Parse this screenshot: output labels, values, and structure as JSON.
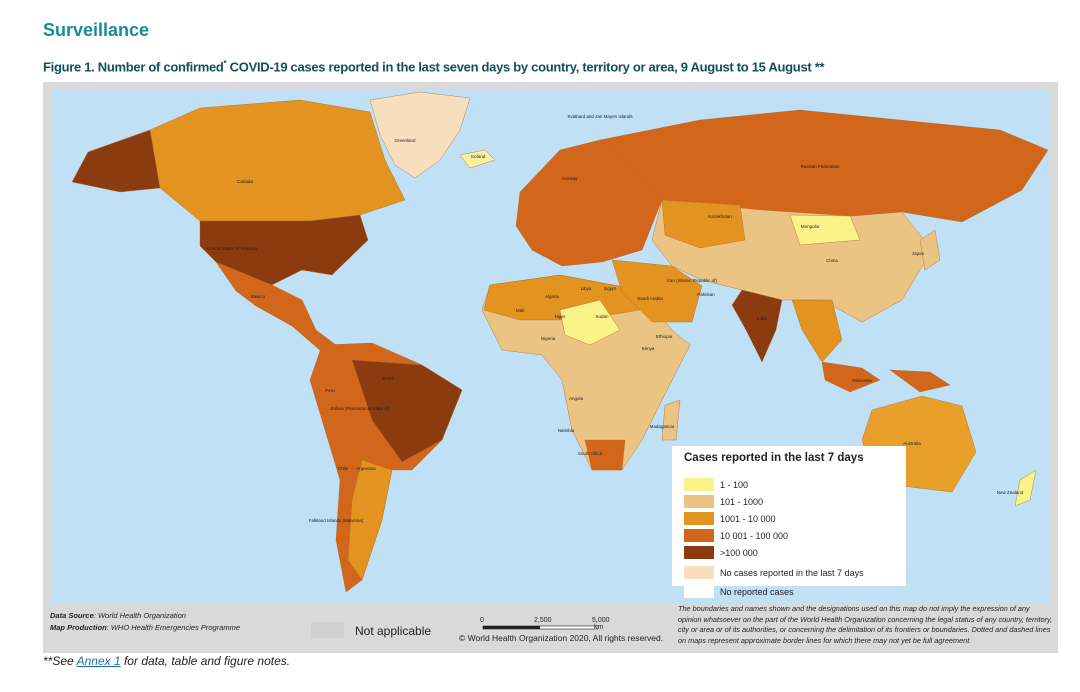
{
  "header": {
    "title": "Surveillance",
    "caption_prefix": "Figure 1. Number of confirmed",
    "caption_mark": "*",
    "caption_suffix": " COVID-19 cases reported in the last seven days by country, territory or area, 9 August to 15 August **"
  },
  "map": {
    "ocean_color": "#bfe0f5",
    "labels": [
      "Greenland",
      "Canada",
      "United States of America",
      "Brazil",
      "Russian Federation",
      "China",
      "India",
      "Mongolia",
      "Kazakhstan",
      "Mexico",
      "Argentina",
      "Chile",
      "South Africa",
      "Madagascar",
      "Indonesia",
      "Saudi Arabia",
      "Iceland",
      "Norway",
      "Australia",
      "New Zealand",
      "Japan",
      "Peru",
      "Bolivia (Plurinational State of)",
      "Sudan",
      "Algeria",
      "Egypt",
      "Kenya",
      "Ethiopia",
      "Nigeria",
      "Libya",
      "Niger",
      "Mali",
      "Angola",
      "Namibia",
      "Iran (Islamic Republic of)",
      "Pakistan",
      "Falkland Islands (Malvinas)",
      "Svalbard and Jan Mayen Islands"
    ],
    "legend": {
      "title": "Cases reported in the last 7 days",
      "items": [
        {
          "label": "1 - 100",
          "color": "#fbf28a"
        },
        {
          "label": "101 - 1000",
          "color": "#ebc383"
        },
        {
          "label": "1001 - 10 000",
          "color": "#e3931f"
        },
        {
          "label": "10 001 - 100 000",
          "color": "#d2661a"
        },
        {
          "label": ">100 000",
          "color": "#8c3a10"
        },
        {
          "label": "No cases reported in the last 7 days",
          "color": "#f7dfbd"
        },
        {
          "label": "No reported cases",
          "color": "#ffffff"
        }
      ]
    }
  },
  "footer": {
    "data_source_label": "Data Source",
    "data_source": "World Health Organization",
    "map_production_label": "Map Production",
    "map_production": "WHO Health Emergencies Programme",
    "not_applicable": "Not applicable",
    "scale": [
      "0",
      "2,500",
      "5,000",
      "km"
    ],
    "copyright": "© World Health Organization  2020,  All rights reserved.",
    "disclaimer": "The boundaries and names shown and the designations used on this map do not imply the expression of any opinion whatsoever on the part of the World Health Organization concerning the legal status of any country, territory, city or area or of its authorities, or concerning the delimitation of its frontiers or boundaries. Dotted and dashed lines on maps represent approximate border lines for which there may not yet be full agreement."
  },
  "note": {
    "prefix": "**See ",
    "link": "Annex 1",
    "suffix": " for data, table and figure notes."
  }
}
